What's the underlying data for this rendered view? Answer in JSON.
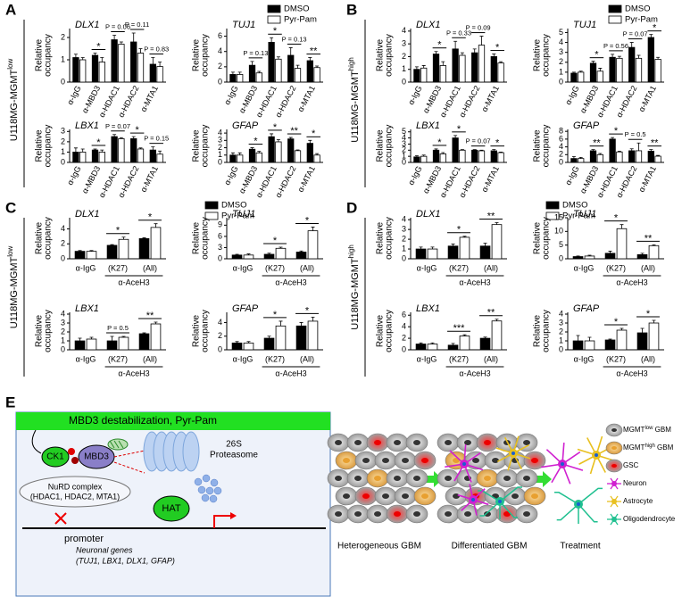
{
  "panels": [
    {
      "letter": "A",
      "row_label": {
        "text": "U118MG-MGMT",
        "sup": "low"
      }
    },
    {
      "letter": "B",
      "row_label": {
        "text": "U118MG-MGMT",
        "sup": "high"
      }
    },
    {
      "letter": "C",
      "row_label": {
        "text": "U118MG-MGMT",
        "sup": "low"
      }
    },
    {
      "letter": "D",
      "row_label": {
        "text": "U118MG-MGMT",
        "sup": "high"
      }
    }
  ],
  "chart_data": [
    {
      "type": "bar",
      "title": "DLX1",
      "ylabel": [
        "Relative",
        "occupancy"
      ],
      "categories": [
        "α-IgG",
        "α-MBD3",
        "α-HDAC1",
        "α-HDAC2",
        "α-MTA1"
      ],
      "ylim": [
        0,
        2.4
      ],
      "yticks": [
        0,
        1,
        2
      ],
      "series": [
        {
          "name": "DMSO",
          "color": "#000000",
          "values": [
            1.1,
            1.2,
            1.9,
            1.8,
            0.8
          ],
          "errors": [
            0.15,
            0.1,
            0.2,
            0.4,
            0.3
          ]
        },
        {
          "name": "Pyr-Pam",
          "color": "#ffffff",
          "values": [
            1.0,
            0.9,
            1.7,
            1.3,
            0.7
          ],
          "errors": [
            0.1,
            0.2,
            0.1,
            0.2,
            0.2
          ]
        }
      ],
      "annotations": [
        null,
        "*",
        "P = 0.06",
        "P = 0.11",
        "P = 0.83"
      ]
    },
    {
      "type": "bar",
      "title": "TUJ1",
      "ylabel": [
        "Relative",
        "occupancy"
      ],
      "categories": [
        "α-IgG",
        "α-MBD3",
        "α-HDAC1",
        "α-HDAC2",
        "α-MTA1"
      ],
      "ylim": [
        0,
        7
      ],
      "yticks": [
        0,
        2,
        4,
        6
      ],
      "series": [
        {
          "color": "#000000",
          "values": [
            1.0,
            2.2,
            5.2,
            3.5,
            2.8
          ],
          "errors": [
            0.3,
            0.5,
            0.6,
            1.0,
            0.4
          ]
        },
        {
          "color": "#ffffff",
          "values": [
            1.0,
            1.2,
            3.0,
            1.8,
            1.9
          ],
          "errors": [
            0.3,
            0.2,
            0.3,
            0.4,
            0.2
          ]
        }
      ],
      "annotations": [
        null,
        "P = 0.13",
        "*",
        "P = 0.13",
        "**"
      ]
    },
    {
      "type": "bar",
      "title": "LBX1",
      "ylabel": [
        "Relative",
        "occupancy"
      ],
      "categories": [
        "α-IgG",
        "α-MBD3",
        "α-HDAC1",
        "α-HDAC2",
        "α-MTA1"
      ],
      "ylim": [
        0,
        3.2
      ],
      "yticks": [
        0,
        1,
        2,
        3
      ],
      "series": [
        {
          "color": "#000000",
          "values": [
            1.0,
            1.2,
            2.5,
            2.3,
            1.2
          ],
          "errors": [
            0.4,
            0.1,
            0.2,
            0.2,
            0.3
          ]
        },
        {
          "color": "#ffffff",
          "values": [
            1.0,
            1.0,
            2.3,
            1.3,
            0.8
          ],
          "errors": [
            0.3,
            0.2,
            0.1,
            0.1,
            0.3
          ]
        }
      ],
      "annotations": [
        null,
        "*",
        "P = 0.07",
        "*",
        "P = 0.15"
      ]
    },
    {
      "type": "bar",
      "title": "GFAP",
      "ylabel": [
        "Relative",
        "occupancy"
      ],
      "categories": [
        "α-IgG",
        "α-MBD3",
        "α-HDAC1",
        "α-HDAC2",
        "α-MTA1"
      ],
      "ylim": [
        0,
        4.5
      ],
      "yticks": [
        0,
        1,
        2,
        3,
        4
      ],
      "series": [
        {
          "color": "#000000",
          "values": [
            1.0,
            1.8,
            3.5,
            3.2,
            2.6
          ],
          "errors": [
            0.3,
            0.2,
            0.4,
            0.2,
            0.4
          ]
        },
        {
          "color": "#ffffff",
          "values": [
            1.0,
            1.3,
            2.8,
            1.6,
            1.0
          ],
          "errors": [
            0.3,
            0.2,
            0.3,
            0.1,
            0.2
          ]
        }
      ],
      "annotations": [
        null,
        "*",
        "*",
        "**",
        "*"
      ]
    },
    {
      "type": "bar",
      "title": "DLX1",
      "ylabel": [
        "Relative",
        "occupancy"
      ],
      "categories": [
        "α-IgG",
        "α-MBD3",
        "α-HDAC1",
        "α-HDAC2",
        "α-MTA1"
      ],
      "ylim": [
        0,
        4.2
      ],
      "yticks": [
        0,
        1,
        2,
        3,
        4
      ],
      "series": [
        {
          "name": "DMSO",
          "color": "#000000",
          "values": [
            1.0,
            2.2,
            2.6,
            2.3,
            2.0
          ],
          "errors": [
            0.2,
            0.2,
            0.6,
            0.3,
            0.2
          ]
        },
        {
          "name": "Pyr-Pam",
          "color": "#ffffff",
          "values": [
            1.1,
            1.3,
            2.1,
            2.9,
            1.5
          ],
          "errors": [
            0.2,
            0.3,
            0.2,
            0.7,
            0.1
          ]
        }
      ],
      "annotations": [
        null,
        "*",
        "P = 0.33",
        "P = 0.09",
        "*"
      ]
    },
    {
      "type": "bar",
      "title": "TUJ1",
      "ylabel": [
        "Relative",
        "occupancy"
      ],
      "categories": [
        "α-IgG",
        "α-MBD3",
        "α-HDAC1",
        "α-HDAC2",
        "α-MTA1"
      ],
      "ylim": [
        0,
        5.4
      ],
      "yticks": [
        0,
        1,
        2,
        3,
        4,
        5
      ],
      "series": [
        {
          "color": "#000000",
          "values": [
            0.9,
            1.9,
            2.5,
            3.5,
            4.5
          ],
          "errors": [
            0.1,
            0.2,
            0.3,
            0.5,
            0.3
          ]
        },
        {
          "color": "#ffffff",
          "values": [
            1.0,
            1.1,
            2.4,
            2.4,
            2.3
          ],
          "errors": [
            0.1,
            0.3,
            0.2,
            0.3,
            0.2
          ]
        }
      ],
      "annotations": [
        null,
        "*",
        "P = 0.56",
        "P = 0.07",
        "*"
      ]
    },
    {
      "type": "bar",
      "title": "LBX1",
      "ylabel": [
        "Relative",
        "occupancy"
      ],
      "categories": [
        "α-IgG",
        "α-MBD3",
        "α-HDAC1",
        "α-HDAC2",
        "α-MTA1"
      ],
      "ylim": [
        0,
        5.4
      ],
      "yticks": [
        0,
        1,
        2,
        3,
        4,
        5
      ],
      "series": [
        {
          "color": "#000000",
          "values": [
            0.9,
            2.0,
            4.0,
            2.0,
            1.9
          ],
          "errors": [
            0.2,
            0.2,
            0.4,
            0.1,
            0.2
          ]
        },
        {
          "color": "#ffffff",
          "values": [
            1.0,
            1.4,
            2.0,
            1.9,
            1.6
          ],
          "errors": [
            0.2,
            0.2,
            0.1,
            0.1,
            0.1
          ]
        }
      ],
      "annotations": [
        null,
        "*",
        "*",
        "P = 0.07",
        "*"
      ]
    },
    {
      "type": "bar",
      "title": "GFAP",
      "ylabel": [
        "Relative",
        "occupancy"
      ],
      "categories": [
        "α-IgG",
        "α-MBD3",
        "α-HDAC1",
        "α-HDAC2",
        "α-MTA1"
      ],
      "ylim": [
        0,
        8.5
      ],
      "yticks": [
        0,
        2,
        4,
        6,
        8
      ],
      "series": [
        {
          "color": "#000000",
          "values": [
            1.0,
            3.0,
            6.0,
            3.0,
            2.9
          ],
          "errors": [
            0.5,
            0.3,
            0.4,
            0.5,
            0.4
          ]
        },
        {
          "color": "#ffffff",
          "values": [
            1.0,
            2.0,
            2.7,
            3.0,
            1.6
          ],
          "errors": [
            0.3,
            0.3,
            0.2,
            2.0,
            0.2
          ]
        }
      ],
      "annotations": [
        null,
        "**",
        "*",
        "P = 0.5",
        "**"
      ]
    },
    {
      "type": "bar",
      "title": "DLX1",
      "ylabel": [
        "Relative",
        "occupancy"
      ],
      "categories": [
        "α-IgG",
        "(K27)",
        "(All)"
      ],
      "group_label": "α-AceH3",
      "ylim": [
        0,
        5.5
      ],
      "yticks": [
        0,
        2,
        4
      ],
      "series": [
        {
          "name": "DMSO",
          "color": "#000000",
          "values": [
            1.0,
            1.8,
            2.7
          ],
          "errors": [
            0.1,
            0.1,
            0.1
          ]
        },
        {
          "name": "Pyr-Pam",
          "color": "#ffffff",
          "values": [
            1.0,
            2.6,
            4.2
          ],
          "errors": [
            0.1,
            0.3,
            0.5
          ]
        }
      ],
      "annotations": [
        null,
        "*",
        "*"
      ]
    },
    {
      "type": "bar",
      "title": "TUJ1",
      "ylabel": [
        "Relative",
        "occupancy"
      ],
      "categories": [
        "α-IgG",
        "(K27)",
        "(All)"
      ],
      "group_label": "α-AceH3",
      "ylim": [
        0,
        11
      ],
      "yticks": [
        0,
        3,
        6,
        9
      ],
      "series": [
        {
          "color": "#000000",
          "values": [
            1.0,
            1.2,
            1.8
          ],
          "errors": [
            0.2,
            0.3,
            0.3
          ]
        },
        {
          "color": "#ffffff",
          "values": [
            1.0,
            2.8,
            7.5
          ],
          "errors": [
            0.3,
            0.3,
            1.0
          ]
        }
      ],
      "annotations": [
        null,
        "*",
        "*"
      ]
    },
    {
      "type": "bar",
      "title": "LBX1",
      "ylabel": [
        "Relative",
        "occupancy"
      ],
      "categories": [
        "α-IgG",
        "(K27)",
        "(All)"
      ],
      "group_label": "α-AceH3",
      "ylim": [
        0,
        4.2
      ],
      "yticks": [
        0,
        1,
        2,
        3,
        4
      ],
      "series": [
        {
          "color": "#000000",
          "values": [
            1.0,
            1.0,
            1.8
          ],
          "errors": [
            0.3,
            0.5,
            0.1
          ]
        },
        {
          "color": "#ffffff",
          "values": [
            1.2,
            1.4,
            2.9
          ],
          "errors": [
            0.2,
            0.1,
            0.2
          ]
        }
      ],
      "annotations": [
        null,
        "P = 0.5",
        "**"
      ]
    },
    {
      "type": "bar",
      "title": "GFAP",
      "ylabel": [
        "Relative",
        "occupancy"
      ],
      "categories": [
        "α-IgG",
        "(K27)",
        "(All)"
      ],
      "group_label": "α-AceH3",
      "ylim": [
        0,
        5.5
      ],
      "yticks": [
        0,
        2,
        4
      ],
      "series": [
        {
          "color": "#000000",
          "values": [
            1.0,
            1.7,
            3.5
          ],
          "errors": [
            0.2,
            0.3,
            0.5
          ]
        },
        {
          "color": "#ffffff",
          "values": [
            1.0,
            3.5,
            4.2
          ],
          "errors": [
            0.2,
            0.7,
            0.6
          ]
        }
      ],
      "annotations": [
        null,
        "*",
        "*"
      ]
    },
    {
      "type": "bar",
      "title": "DLX1",
      "ylabel": [
        "Relative",
        "occupancy"
      ],
      "categories": [
        "α-IgG",
        "(K27)",
        "(All)"
      ],
      "group_label": "α-AceH3",
      "ylim": [
        0,
        4.2
      ],
      "yticks": [
        0,
        1,
        2,
        3,
        4
      ],
      "series": [
        {
          "name": "DMSO",
          "color": "#000000",
          "values": [
            1.0,
            1.3,
            1.3
          ],
          "errors": [
            0.2,
            0.2,
            0.3
          ]
        },
        {
          "name": "Pyr-Pam",
          "color": "#ffffff",
          "values": [
            1.0,
            2.2,
            3.5
          ],
          "errors": [
            0.2,
            0.1,
            0.2
          ]
        }
      ],
      "annotations": [
        null,
        "*",
        "**"
      ]
    },
    {
      "type": "bar",
      "title": "TUJ1",
      "ylabel": [
        "Relative",
        "occupancy"
      ],
      "categories": [
        "α-IgG",
        "(K27)",
        "(All)"
      ],
      "group_label": "α-AceH3",
      "ylim": [
        0,
        15
      ],
      "yticks": [
        0,
        5,
        10,
        15
      ],
      "series": [
        {
          "color": "#000000",
          "values": [
            0.8,
            2.0,
            1.5
          ],
          "errors": [
            0.2,
            0.8,
            0.5
          ]
        },
        {
          "color": "#ffffff",
          "values": [
            1.0,
            11.0,
            4.8
          ],
          "errors": [
            0.3,
            1.5,
            0.3
          ]
        }
      ],
      "annotations": [
        null,
        "*",
        "**"
      ]
    },
    {
      "type": "bar",
      "title": "LBX1",
      "ylabel": [
        "Relative",
        "occupancy"
      ],
      "categories": [
        "α-IgG",
        "(K27)",
        "(All)"
      ],
      "group_label": "α-AceH3",
      "ylim": [
        0,
        6.5
      ],
      "yticks": [
        0,
        2,
        4,
        6
      ],
      "series": [
        {
          "color": "#000000",
          "values": [
            1.0,
            0.8,
            2.0
          ],
          "errors": [
            0.2,
            0.3,
            0.2
          ]
        },
        {
          "color": "#ffffff",
          "values": [
            1.0,
            2.4,
            5.0
          ],
          "errors": [
            0.2,
            0.2,
            0.3
          ]
        }
      ],
      "annotations": [
        null,
        "***",
        "**"
      ]
    },
    {
      "type": "bar",
      "title": "GFAP",
      "ylabel": [
        "Relative",
        "occupancy"
      ],
      "categories": [
        "α-IgG",
        "(K27)",
        "(All)"
      ],
      "group_label": "α-AceH3",
      "ylim": [
        0,
        4.2
      ],
      "yticks": [
        0,
        1,
        2,
        3,
        4
      ],
      "series": [
        {
          "color": "#000000",
          "values": [
            1.0,
            1.1,
            1.9
          ],
          "errors": [
            0.6,
            0.1,
            0.5
          ]
        },
        {
          "color": "#ffffff",
          "values": [
            1.0,
            2.2,
            3.0
          ],
          "errors": [
            0.4,
            0.2,
            0.3
          ]
        }
      ],
      "annotations": [
        null,
        "*",
        "*"
      ]
    }
  ],
  "diagram": {
    "panel": "E",
    "banner": "MBD3 destabilization, Pyr-Pam",
    "ck1": "CK1",
    "mbd3": "MBD3",
    "proteasome": [
      "26S",
      "Proteasome"
    ],
    "nurd": [
      "NuRD complex",
      "(HDAC1, HDAC2, MTA1)"
    ],
    "hat": "HAT",
    "promoter": "promoter",
    "genes": [
      "Neuronal genes",
      "(TUJ1, LBX1, DLX1, GFAP)"
    ],
    "stages": [
      "Heterogeneous GBM",
      "Differentiated GBM",
      "Treatment"
    ],
    "legend": [
      {
        "label": "MGMT",
        "sup": "low",
        "suffix": " GBM"
      },
      {
        "label": "MGMT",
        "sup": "high",
        "suffix": " GBM"
      },
      {
        "label": "GSC"
      },
      {
        "label": "Neuron"
      },
      {
        "label": "Astrocyte"
      },
      {
        "label": "Oligodendrocyte"
      }
    ]
  }
}
